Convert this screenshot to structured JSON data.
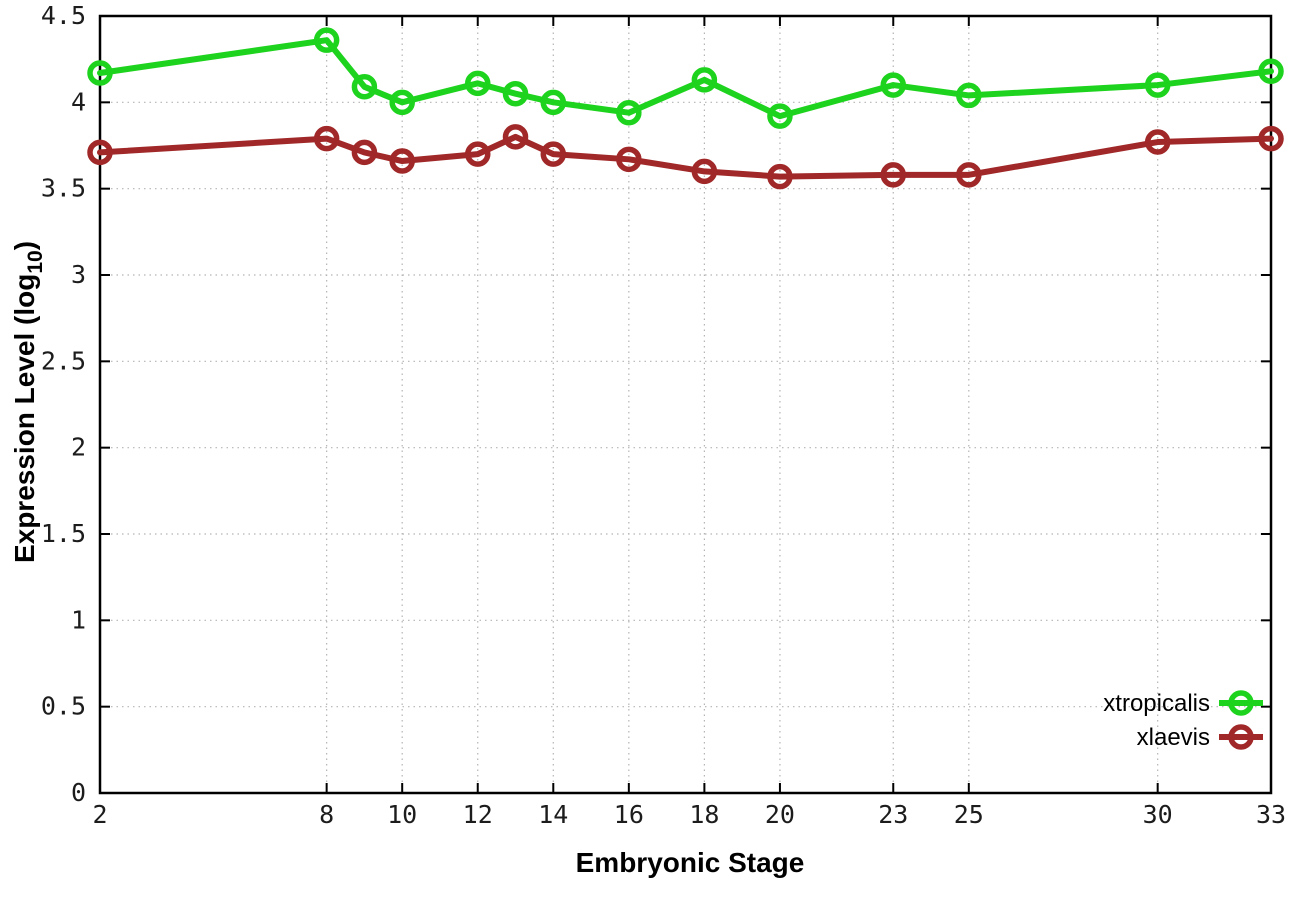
{
  "figure": {
    "background": "#ffffff",
    "border_color": "#000000",
    "grid_color": "#b4b4b4",
    "tick_color": "#000000"
  },
  "chart_data": {
    "type": "line",
    "title": "",
    "xlabel": "Embryonic Stage",
    "ylabel": "Expression Level (log10)",
    "ylabel_parts": {
      "main": "Expression Level (log",
      "sub": "10",
      "end": ")"
    },
    "x": [
      2,
      8,
      9,
      10,
      12,
      13,
      14,
      16,
      18,
      20,
      23,
      25,
      30,
      33
    ],
    "series": [
      {
        "name": "xtropicalis",
        "color": "#1ed31e",
        "marker": "open-circle",
        "values": [
          4.17,
          4.36,
          4.09,
          4.0,
          4.11,
          4.05,
          4.0,
          3.94,
          4.13,
          3.92,
          4.1,
          4.04,
          4.1,
          4.18
        ]
      },
      {
        "name": "xlaevis",
        "color": "#a12828",
        "marker": "open-circle",
        "values": [
          3.71,
          3.79,
          3.71,
          3.66,
          3.7,
          3.8,
          3.7,
          3.67,
          3.6,
          3.57,
          3.58,
          3.58,
          3.77,
          3.79
        ]
      }
    ],
    "xlim": [
      2,
      33
    ],
    "ylim": [
      0,
      4.5
    ],
    "xtick_values": [
      2,
      8,
      10,
      12,
      14,
      16,
      18,
      20,
      23,
      25,
      30,
      33
    ],
    "xtick_labels": [
      "2",
      "8",
      "10",
      "12",
      "14",
      "16",
      "18",
      "20",
      "23",
      "25",
      "30",
      "33"
    ],
    "ytick_values": [
      0,
      0.5,
      1,
      1.5,
      2,
      2.5,
      3,
      3.5,
      4,
      4.5
    ],
    "ytick_labels": [
      "0",
      "0.5",
      "1",
      "1.5",
      "2",
      "2.5",
      "3",
      "3.5",
      "4",
      "4.5"
    ],
    "grid": true,
    "legend_position": "bottom-right"
  }
}
